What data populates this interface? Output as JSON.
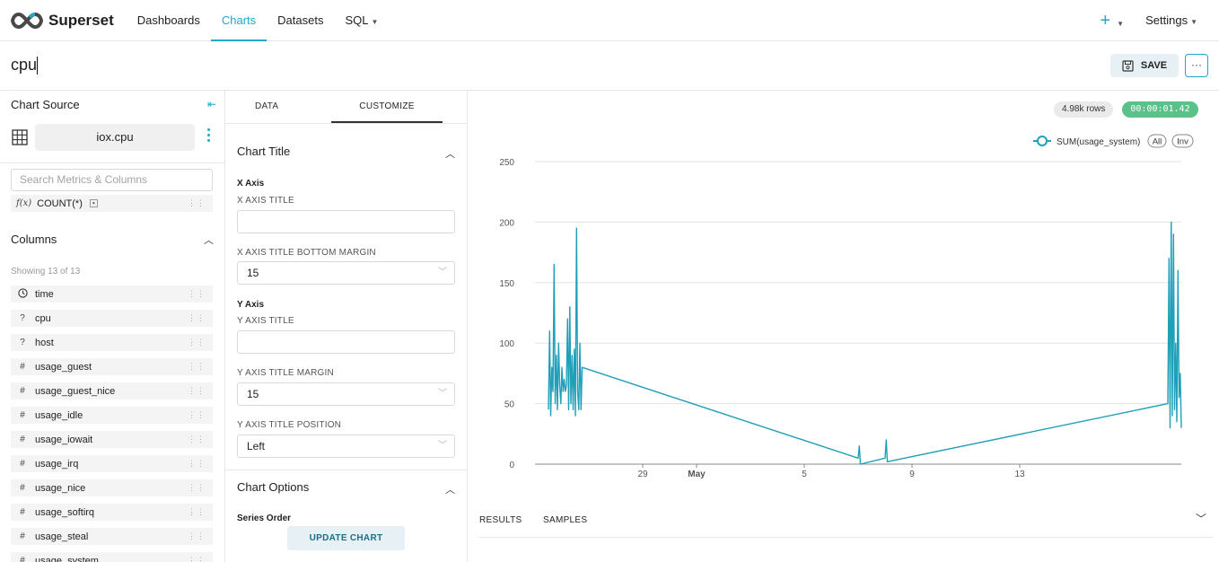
{
  "nav": {
    "brand": "Superset",
    "items": [
      "Dashboards",
      "Charts",
      "Datasets",
      "SQL"
    ],
    "plus": "+",
    "settings": "Settings"
  },
  "header": {
    "chart_name": "cpu",
    "save_label": "SAVE",
    "more_label": "···"
  },
  "left": {
    "title": "Chart Source",
    "dataset": "iox.cpu",
    "search_placeholder": "Search Metrics & Columns",
    "metric_fx": "f(x)",
    "metric": "COUNT(*)",
    "columns_title": "Columns",
    "showing": "Showing 13 of 13",
    "columns": [
      {
        "type": "time",
        "icon": "clock-icon",
        "name": "time"
      },
      {
        "type": "?",
        "icon": "question-icon",
        "name": "cpu"
      },
      {
        "type": "?",
        "icon": "question-icon",
        "name": "host"
      },
      {
        "type": "#",
        "icon": "hash-icon",
        "name": "usage_guest"
      },
      {
        "type": "#",
        "icon": "hash-icon",
        "name": "usage_guest_nice"
      },
      {
        "type": "#",
        "icon": "hash-icon",
        "name": "usage_idle"
      },
      {
        "type": "#",
        "icon": "hash-icon",
        "name": "usage_iowait"
      },
      {
        "type": "#",
        "icon": "hash-icon",
        "name": "usage_irq"
      },
      {
        "type": "#",
        "icon": "hash-icon",
        "name": "usage_nice"
      },
      {
        "type": "#",
        "icon": "hash-icon",
        "name": "usage_softirq"
      },
      {
        "type": "#",
        "icon": "hash-icon",
        "name": "usage_steal"
      },
      {
        "type": "#",
        "icon": "hash-icon",
        "name": "usage_system"
      }
    ]
  },
  "middle": {
    "tab_data": "DATA",
    "tab_customize": "CUSTOMIZE",
    "chart_title_section": "Chart Title",
    "x_axis": "X Axis",
    "x_axis_title_label": "X AXIS TITLE",
    "x_axis_title_value": "",
    "x_axis_bottom_margin_label": "X AXIS TITLE BOTTOM MARGIN",
    "x_axis_bottom_margin_value": "15",
    "y_axis": "Y Axis",
    "y_axis_title_label": "Y AXIS TITLE",
    "y_axis_title_value": "",
    "y_axis_margin_label": "Y AXIS TITLE MARGIN",
    "y_axis_margin_value": "15",
    "y_axis_position_label": "Y AXIS TITLE POSITION",
    "y_axis_position_value": "Left",
    "chart_options_section": "Chart Options",
    "series_order": "Series Order",
    "update_label": "UPDATE CHART"
  },
  "right": {
    "rows_badge": "4.98k rows",
    "time_badge": "00:00:01.42",
    "results_tab": "RESULTS",
    "samples_tab": "SAMPLES"
  },
  "chart_data": {
    "type": "line",
    "title": "",
    "xlabel": "",
    "ylabel": "",
    "ylim": [
      0,
      250
    ],
    "yticks": [
      0,
      50,
      100,
      150,
      200,
      250
    ],
    "xticks": [
      {
        "date": "2022-04-29",
        "label": "29",
        "bold": false
      },
      {
        "date": "2022-05-01",
        "label": "May",
        "bold": true
      },
      {
        "date": "2022-05-05",
        "label": "5",
        "bold": false
      },
      {
        "date": "2022-05-09",
        "label": "9",
        "bold": false
      },
      {
        "date": "2022-05-13",
        "label": "13",
        "bold": false
      }
    ],
    "xrange": [
      "2022-04-25 00:00",
      "2022-05-19 00:00"
    ],
    "grid": true,
    "legend_position": "top-right",
    "legend_buttons": [
      "All",
      "Inv"
    ],
    "color": "#1f9fb8",
    "series": [
      {
        "name": "SUM(usage_system)",
        "points": [
          [
            "2022-04-25 12:00",
            45
          ],
          [
            "2022-04-25 13:00",
            110
          ],
          [
            "2022-04-25 14:00",
            40
          ],
          [
            "2022-04-25 15:00",
            80
          ],
          [
            "2022-04-25 16:00",
            60
          ],
          [
            "2022-04-25 17:00",
            165
          ],
          [
            "2022-04-25 18:00",
            50
          ],
          [
            "2022-04-25 19:00",
            90
          ],
          [
            "2022-04-25 20:00",
            45
          ],
          [
            "2022-04-25 21:00",
            100
          ],
          [
            "2022-04-25 22:00",
            65
          ],
          [
            "2022-04-25 23:00",
            50
          ],
          [
            "2022-04-26 00:00",
            80
          ],
          [
            "2022-04-26 01:00",
            60
          ],
          [
            "2022-04-26 02:00",
            70
          ],
          [
            "2022-04-26 03:00",
            60
          ],
          [
            "2022-04-26 04:00",
            65
          ],
          [
            "2022-04-26 05:00",
            120
          ],
          [
            "2022-04-26 06:00",
            45
          ],
          [
            "2022-04-26 07:00",
            130
          ],
          [
            "2022-04-26 08:00",
            50
          ],
          [
            "2022-04-26 09:00",
            90
          ],
          [
            "2022-04-26 10:00",
            45
          ],
          [
            "2022-04-26 11:00",
            95
          ],
          [
            "2022-04-26 12:00",
            40
          ],
          [
            "2022-04-26 13:00",
            195
          ],
          [
            "2022-04-26 14:00",
            60
          ],
          [
            "2022-04-26 15:00",
            45
          ],
          [
            "2022-04-26 16:00",
            100
          ],
          [
            "2022-04-26 17:00",
            45
          ],
          [
            "2022-04-26 18:00",
            80
          ],
          [
            "2022-05-07 00:00",
            5
          ],
          [
            "2022-05-07 01:00",
            15
          ],
          [
            "2022-05-07 02:00",
            0
          ],
          [
            "2022-05-08 00:00",
            5
          ],
          [
            "2022-05-08 01:00",
            20
          ],
          [
            "2022-05-08 02:00",
            2
          ],
          [
            "2022-05-18 12:00",
            50
          ],
          [
            "2022-05-18 13:00",
            170
          ],
          [
            "2022-05-18 14:00",
            30
          ],
          [
            "2022-05-18 15:00",
            200
          ],
          [
            "2022-05-18 16:00",
            40
          ],
          [
            "2022-05-18 17:00",
            190
          ],
          [
            "2022-05-18 18:00",
            45
          ],
          [
            "2022-05-18 19:00",
            100
          ],
          [
            "2022-05-18 20:00",
            35
          ],
          [
            "2022-05-18 21:00",
            160
          ],
          [
            "2022-05-18 22:00",
            55
          ],
          [
            "2022-05-18 23:00",
            75
          ],
          [
            "2022-05-19 00:00",
            30
          ]
        ]
      }
    ]
  }
}
